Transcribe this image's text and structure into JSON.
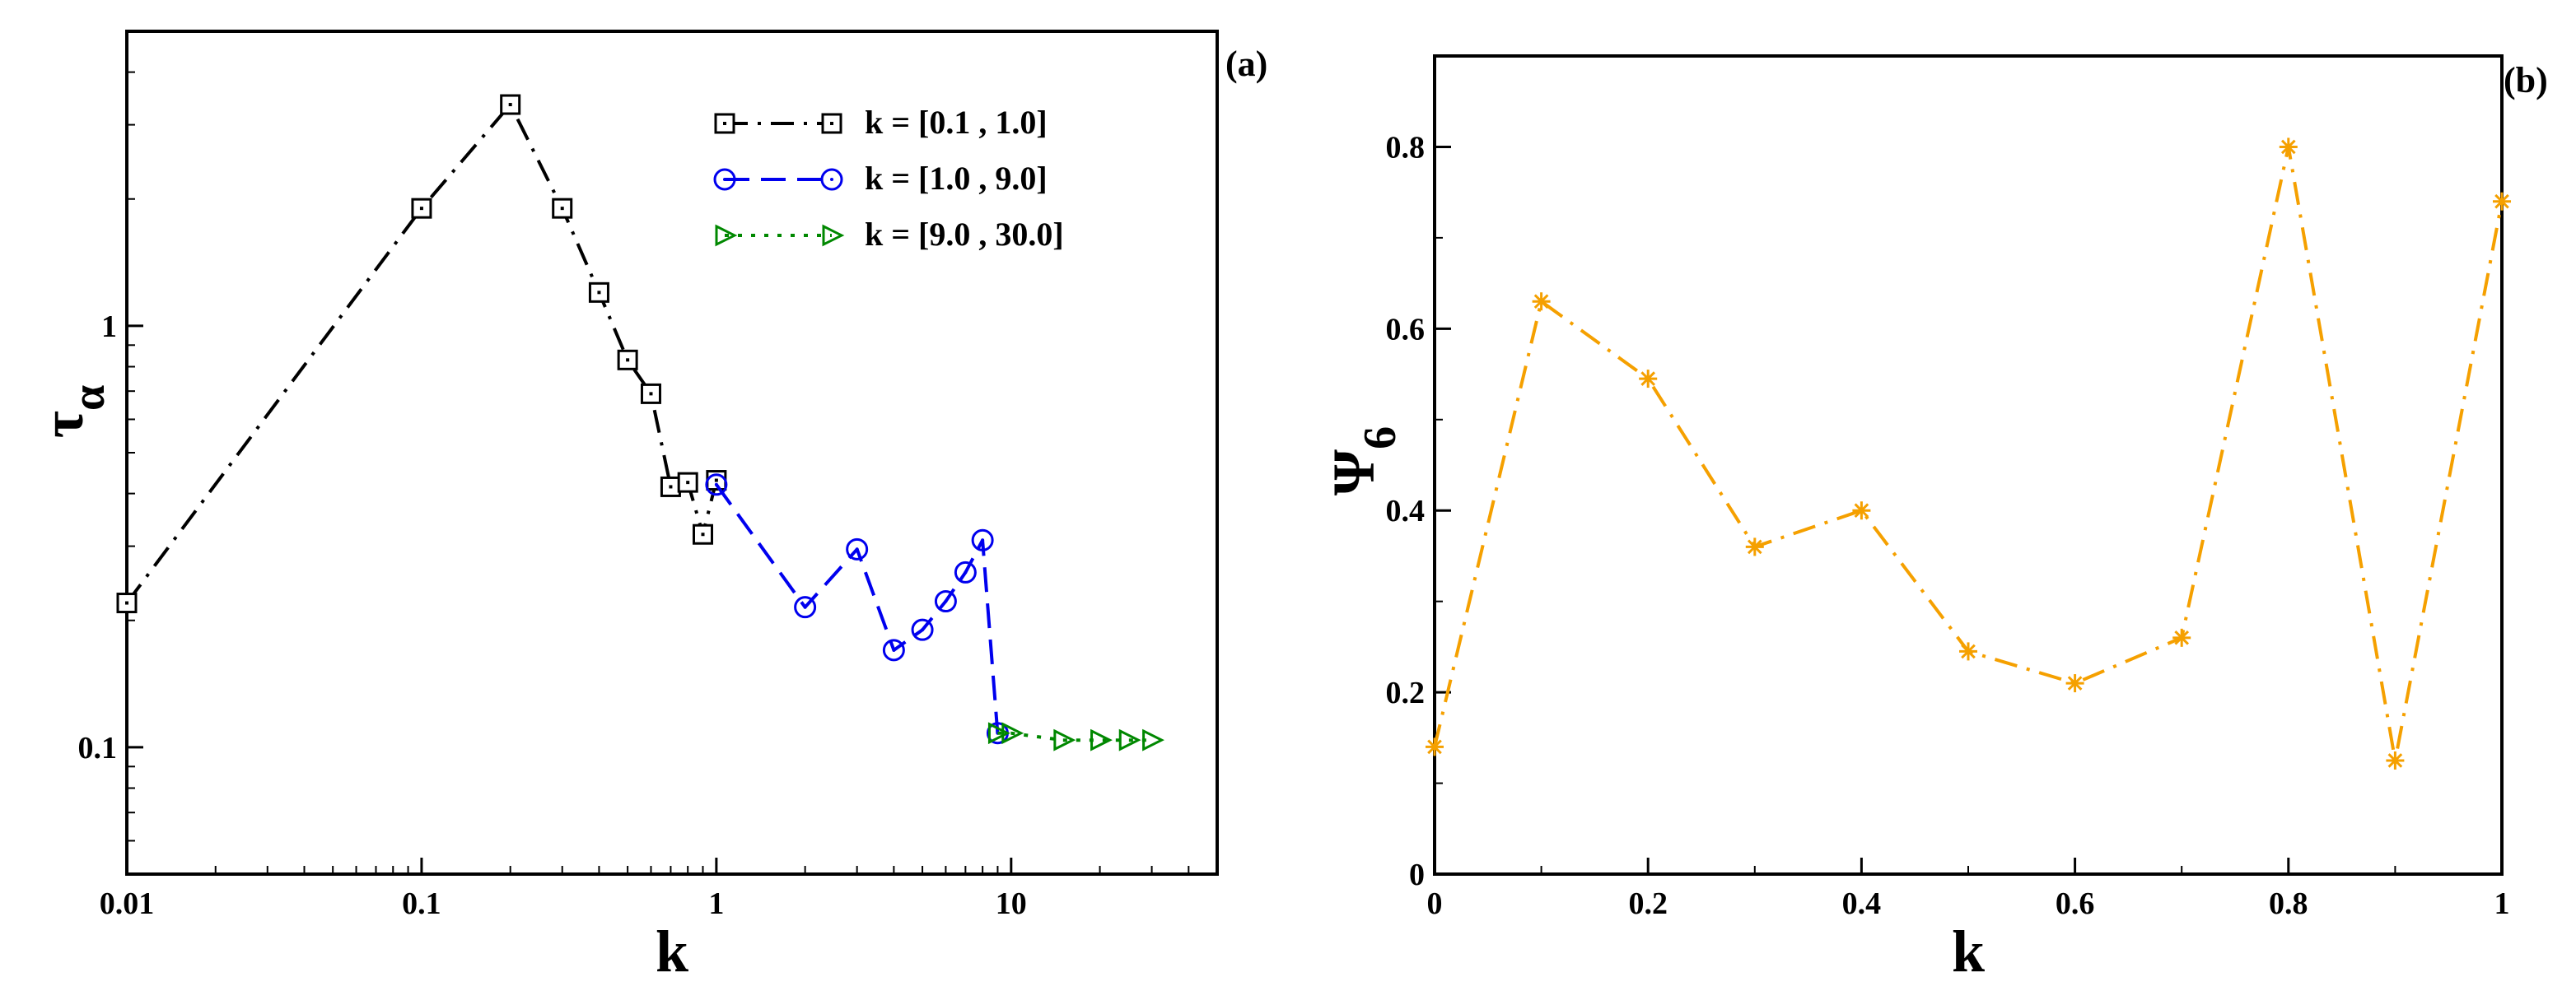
{
  "chart_data": [
    {
      "type": "line",
      "panel_label": "(a)",
      "xscale": "log",
      "yscale": "log",
      "xlim": [
        0.01,
        50
      ],
      "ylim": [
        0.05,
        5
      ],
      "xlabel": "k",
      "ylabel_main": "τ",
      "ylabel_sub": "α",
      "xticks": [
        {
          "value": 0.01,
          "label": "0.01"
        },
        {
          "value": 0.1,
          "label": "0.1"
        },
        {
          "value": 1,
          "label": "1"
        },
        {
          "value": 10,
          "label": "10"
        }
      ],
      "yticks": [
        {
          "value": 0.1,
          "label": "0.1"
        },
        {
          "value": 1,
          "label": "1"
        }
      ],
      "legend_position": "top-right",
      "series": [
        {
          "name": "k = [0.1 , 1.0]",
          "color": "#000000",
          "marker": "square",
          "linestyle": "dashdot",
          "x": [
            0.01,
            0.1,
            0.2,
            0.3,
            0.4,
            0.5,
            0.6,
            0.7,
            0.8,
            0.9,
            1.0
          ],
          "y": [
            0.22,
            1.9,
            3.35,
            1.9,
            1.2,
            0.83,
            0.69,
            0.415,
            0.425,
            0.32,
            0.43
          ]
        },
        {
          "name": "k = [1.0 , 9.0]",
          "color": "#0000ee",
          "marker": "circle",
          "linestyle": "dashed",
          "x": [
            1,
            2,
            3,
            4,
            5,
            6,
            7,
            8,
            9
          ],
          "y": [
            0.42,
            0.215,
            0.295,
            0.17,
            0.19,
            0.222,
            0.26,
            0.31,
            0.108
          ]
        },
        {
          "name": "k = [9.0 , 30.0]",
          "color": "#008800",
          "marker": "triangle-right",
          "linestyle": "dotted",
          "x": [
            9,
            10,
            15,
            20,
            25,
            30
          ],
          "y": [
            0.108,
            0.108,
            0.104,
            0.104,
            0.104,
            0.104
          ]
        }
      ]
    },
    {
      "type": "line",
      "panel_label": "(b)",
      "xlim": [
        0,
        1
      ],
      "ylim": [
        0,
        0.9
      ],
      "xlabel": "k",
      "ylabel_main": "Ψ",
      "ylabel_sub": "6",
      "xticks": [
        {
          "value": 0,
          "label": "0"
        },
        {
          "value": 0.2,
          "label": "0.2"
        },
        {
          "value": 0.4,
          "label": "0.4"
        },
        {
          "value": 0.6,
          "label": "0.6"
        },
        {
          "value": 0.8,
          "label": "0.8"
        },
        {
          "value": 1,
          "label": "1"
        }
      ],
      "yticks": [
        {
          "value": 0,
          "label": "0"
        },
        {
          "value": 0.2,
          "label": "0.2"
        },
        {
          "value": 0.4,
          "label": "0.4"
        },
        {
          "value": 0.6,
          "label": "0.6"
        },
        {
          "value": 0.8,
          "label": "0.8"
        }
      ],
      "series": [
        {
          "name": "Psi6",
          "color": "#f5a000",
          "marker": "asterisk",
          "linestyle": "dashdot",
          "x": [
            0,
            0.1,
            0.2,
            0.3,
            0.4,
            0.5,
            0.6,
            0.7,
            0.8,
            0.9,
            1.0
          ],
          "y": [
            0.14,
            0.63,
            0.545,
            0.36,
            0.4,
            0.245,
            0.21,
            0.26,
            0.8,
            0.125,
            0.74
          ]
        }
      ]
    }
  ]
}
